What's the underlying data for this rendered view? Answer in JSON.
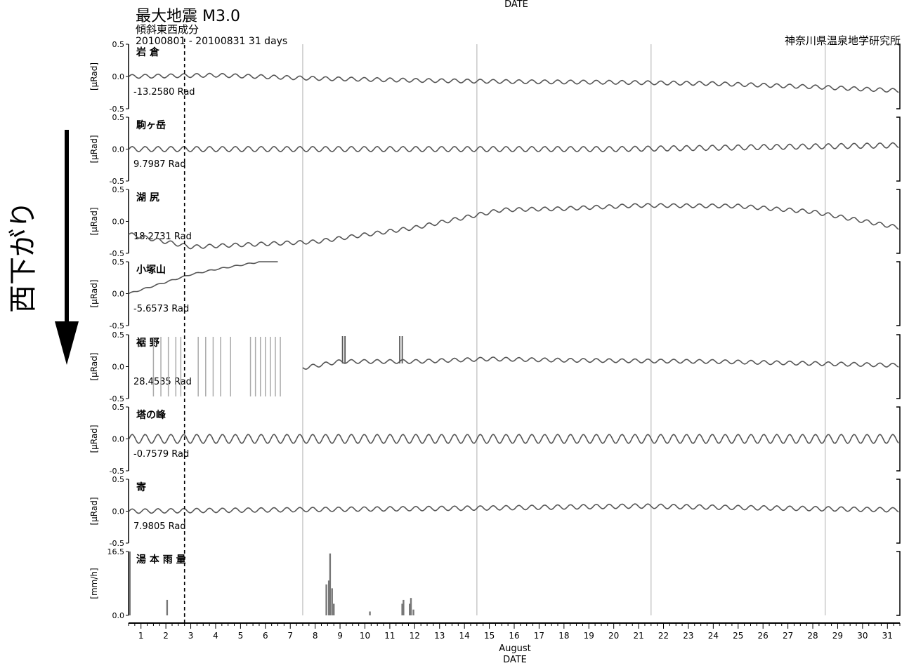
{
  "header": {
    "top_date_label": "DATE",
    "max_quake": "最大地震 M3.0",
    "component": "傾斜東西成分",
    "period": "20100801 - 20100831 31 days",
    "institute": "神奈川県温泉地学研究所"
  },
  "annotation": {
    "text": "西下がり",
    "arrow": "down"
  },
  "chart_data": {
    "type": "line",
    "x": [
      1,
      2,
      3,
      4,
      5,
      6,
      7,
      8,
      9,
      10,
      11,
      12,
      13,
      14,
      15,
      16,
      17,
      18,
      19,
      20,
      21,
      22,
      23,
      24,
      25,
      26,
      27,
      28,
      29,
      30,
      31
    ],
    "x_tick_labels": [
      "1",
      "2",
      "3",
      "4",
      "5",
      "6",
      "7",
      "8",
      "9",
      "10",
      "11",
      "12",
      "13",
      "14",
      "15",
      "16",
      "17",
      "18",
      "19",
      "20",
      "21",
      "22",
      "23",
      "24",
      "25",
      "26",
      "27",
      "28",
      "29",
      "30",
      "31"
    ],
    "xlabel_month": "August",
    "xlabel": "DATE",
    "xlim": [
      0.5,
      31.5
    ],
    "week_lines": [
      7.5,
      14.5,
      21.5,
      28.5
    ],
    "event_line": 2.75,
    "panels": [
      {
        "name": "岩 倉",
        "ylabel": "[µRad]",
        "offset": "-13.2580 Rad",
        "ylim": [
          -0.5,
          0.5
        ],
        "ticks": [
          "0.5",
          "0.0",
          "-0.5"
        ],
        "trend": [
          [
            0.5,
            0.0
          ],
          [
            4,
            0.02
          ],
          [
            8,
            -0.03
          ],
          [
            12,
            -0.06
          ],
          [
            16,
            -0.08
          ],
          [
            20,
            -0.09
          ],
          [
            24,
            -0.11
          ],
          [
            28,
            -0.16
          ],
          [
            31.5,
            -0.22
          ]
        ],
        "tide": 0.03
      },
      {
        "name": "駒ヶ岳",
        "ylabel": "[µRad]",
        "offset": "9.7987 Rad",
        "ylim": [
          -0.5,
          0.5
        ],
        "ticks": [
          "0.5",
          "0.0",
          "-0.5"
        ],
        "trend": [
          [
            0.5,
            0.0
          ],
          [
            10,
            0.0
          ],
          [
            20,
            0.0
          ],
          [
            31.5,
            0.06
          ]
        ],
        "tide": 0.04
      },
      {
        "name": "湖 尻",
        "ylabel": "[µRad]",
        "offset": "18.2731 Rad",
        "ylim": [
          -0.5,
          0.5
        ],
        "ticks": [
          "0.5",
          "0.0",
          "-0.5"
        ],
        "trend": [
          [
            0.5,
            -0.2
          ],
          [
            3,
            -0.4
          ],
          [
            8,
            -0.32
          ],
          [
            12,
            -0.1
          ],
          [
            15.5,
            0.18
          ],
          [
            18,
            0.2
          ],
          [
            21,
            0.25
          ],
          [
            25,
            0.24
          ],
          [
            28,
            0.15
          ],
          [
            31.5,
            -0.1
          ]
        ],
        "tide": 0.03
      },
      {
        "name": "小塚山",
        "ylabel": "[µRad]",
        "offset": "-5.6573 Rad",
        "ylim": [
          -0.5,
          0.5
        ],
        "ticks": [
          "0.5",
          "0.0",
          "-0.5"
        ],
        "trend": [
          [
            0.5,
            0.0
          ],
          [
            3,
            0.3
          ],
          [
            4,
            0.38
          ],
          [
            5.5,
            0.48
          ],
          [
            6.5,
            0.55
          ]
        ],
        "tide": 0.01
      },
      {
        "name": "裾 野",
        "ylabel": "[µRad]",
        "offset": "28.4535 Rad",
        "ylim": [
          -0.5,
          0.5
        ],
        "ticks": [
          "0.5",
          "0.0",
          "-0.5"
        ],
        "trend": [
          [
            7.5,
            -0.02
          ],
          [
            9,
            0.08
          ],
          [
            12,
            0.08
          ],
          [
            15,
            0.12
          ],
          [
            18,
            0.1
          ],
          [
            24,
            0.08
          ],
          [
            28,
            0.05
          ],
          [
            31.5,
            0.02
          ]
        ],
        "tide": 0.03,
        "spikes": [
          9.1,
          9.2,
          11.4,
          11.5
        ],
        "gaps": [
          1.5,
          1.8,
          2.1,
          2.4,
          2.6,
          3.3,
          3.6,
          3.9,
          4.2,
          4.6,
          5.4,
          5.6,
          5.8,
          6.0,
          6.2,
          6.4,
          6.6
        ]
      },
      {
        "name": "塔の峰",
        "ylabel": "[µRad]",
        "offset": "-0.7579 Rad",
        "ylim": [
          -0.5,
          0.5
        ],
        "ticks": [
          "0.5",
          "0.0",
          "-0.5"
        ],
        "trend": [
          [
            0.5,
            0.0
          ],
          [
            31.5,
            0.0
          ]
        ],
        "tide": 0.07
      },
      {
        "name": "寄",
        "ylabel": "[µRad]",
        "offset": "7.9805 Rad",
        "ylim": [
          -0.5,
          0.5
        ],
        "ticks": [
          "0.5",
          "0.0",
          "-0.5"
        ],
        "trend": [
          [
            0.5,
            0.0
          ],
          [
            15,
            0.05
          ],
          [
            21,
            0.08
          ],
          [
            31.5,
            0.02
          ]
        ],
        "tide": 0.035
      },
      {
        "name": "湯 本 雨 量",
        "ylabel": "[mm/h]",
        "ylim": [
          0,
          16.5
        ],
        "ticks": [
          "16.5",
          "0.0"
        ],
        "rain": [
          [
            0.55,
            16.5
          ],
          [
            2.05,
            4.0
          ],
          [
            8.45,
            8.0
          ],
          [
            8.55,
            9.0
          ],
          [
            8.6,
            16.0
          ],
          [
            8.68,
            7.0
          ],
          [
            8.75,
            3.0
          ],
          [
            10.2,
            1.0
          ],
          [
            11.5,
            3.0
          ],
          [
            11.55,
            4.0
          ],
          [
            11.8,
            3.0
          ],
          [
            11.85,
            4.5
          ],
          [
            11.95,
            1.5
          ]
        ]
      }
    ]
  }
}
